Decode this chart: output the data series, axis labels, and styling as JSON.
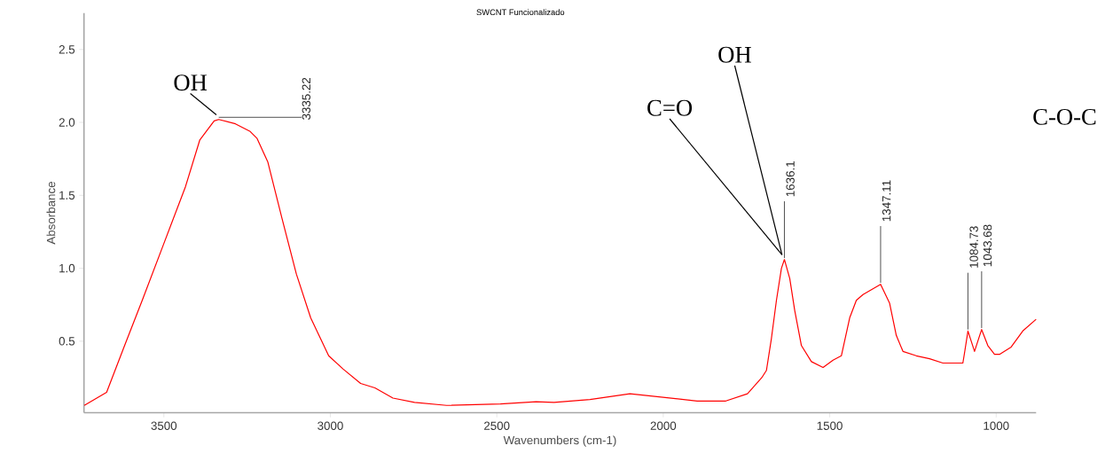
{
  "chart_data": {
    "type": "line",
    "title": "SWCNT Funcionalizado",
    "xlabel": "Wavenumbers (cm-1)",
    "ylabel": "Absorbance",
    "xlim": [
      3740,
      880
    ],
    "ylim": [
      0.01,
      2.75
    ],
    "xticks": [
      3500,
      3000,
      2500,
      2000,
      1500,
      1000
    ],
    "yticks": [
      {
        "value": 0.5,
        "label": "0.5"
      },
      {
        "value": 1,
        "label": "1.0"
      },
      {
        "value": 1.5,
        "label": "1.5"
      },
      {
        "value": 2,
        "label": "2.0"
      },
      {
        "value": 2.5,
        "label": "2.5"
      }
    ],
    "grid": false,
    "marker": "none",
    "line_style": "solid",
    "series": [
      {
        "color": "#ff0000",
        "x": [
          3739,
          3672,
          3618,
          3565,
          3500,
          3435,
          3392,
          3349,
          3335.22,
          3285,
          3242,
          3220,
          3188,
          3145,
          3102,
          3059,
          3005,
          2962,
          2909,
          2866,
          2812,
          2747,
          2651,
          2489,
          2382,
          2328,
          2220,
          2100,
          1898,
          1812,
          1747,
          1704,
          1690,
          1675,
          1660,
          1645,
          1636.1,
          1620,
          1605,
          1585,
          1555,
          1520,
          1490,
          1465,
          1440,
          1420,
          1400,
          1347.11,
          1320,
          1300,
          1280,
          1240,
          1200,
          1160,
          1100,
          1095,
          1084.73,
          1065,
          1043.68,
          1025,
          1005,
          990,
          955,
          920,
          880
        ],
        "values": [
          0.06,
          0.15,
          0.47,
          0.78,
          1.17,
          1.56,
          1.88,
          2.01,
          2.02,
          1.99,
          1.94,
          1.89,
          1.73,
          1.34,
          0.96,
          0.66,
          0.4,
          0.31,
          0.21,
          0.18,
          0.11,
          0.08,
          0.06,
          0.07,
          0.085,
          0.08,
          0.1,
          0.14,
          0.09,
          0.09,
          0.14,
          0.25,
          0.3,
          0.52,
          0.78,
          1.0,
          1.06,
          0.93,
          0.71,
          0.47,
          0.36,
          0.32,
          0.37,
          0.4,
          0.66,
          0.78,
          0.82,
          0.89,
          0.76,
          0.54,
          0.43,
          0.4,
          0.38,
          0.35,
          0.35,
          0.42,
          0.57,
          0.43,
          0.58,
          0.47,
          0.41,
          0.41,
          0.46,
          0.57,
          0.65
        ]
      }
    ],
    "annotations": [
      {
        "text": "3335.22",
        "x": 3335.22,
        "y": 2.02
      },
      {
        "text": "1636.1",
        "x": 1636.1,
        "y": 1.06
      },
      {
        "text": "1347.11",
        "x": 1347.11,
        "y": 0.89
      },
      {
        "text": "1084.73",
        "x": 1084.73,
        "y": 0.57
      },
      {
        "text": "1043.68",
        "x": 1043.68,
        "y": 0.58
      },
      {
        "text": "OH",
        "x": 3335.22,
        "y": 2.02
      },
      {
        "text": "C=O",
        "x": 1636.1,
        "y": 1.06
      },
      {
        "text": "OH",
        "x": 1636.1,
        "y": 1.06
      },
      "C-O-C"
    ]
  }
}
